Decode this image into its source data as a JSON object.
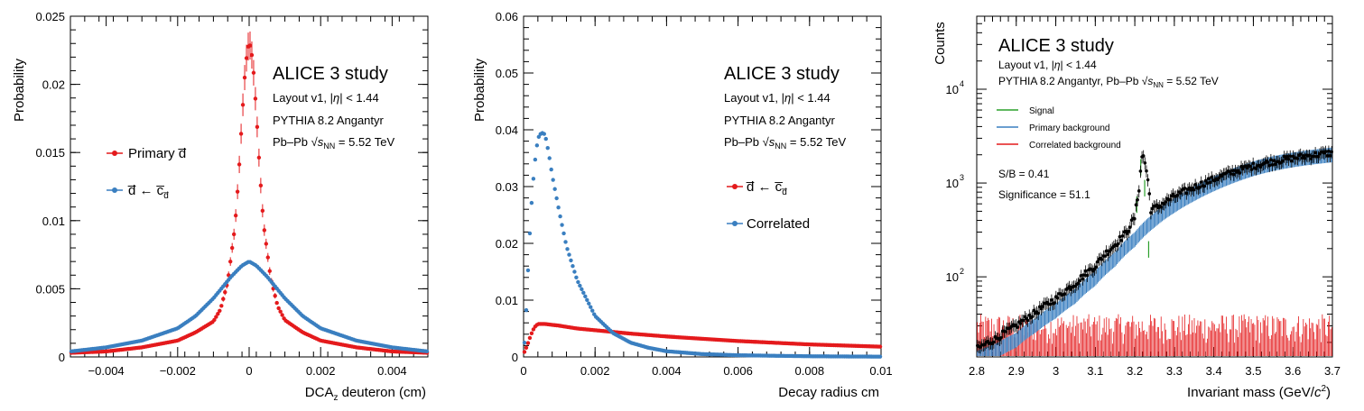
{
  "colors": {
    "red": "#e41a1c",
    "blue": "#3a7fc0",
    "green": "#2ca02c",
    "black": "#000000"
  },
  "chart_data": [
    {
      "type": "scatter",
      "ylabel": "Probability",
      "xlabel_main": "DCA",
      "xlabel_sub": "z",
      "xlabel_rest": " deuteron (cm)",
      "xlim": [
        -0.005,
        0.005
      ],
      "ylim": [
        0,
        0.025
      ],
      "x_ticks": [
        -0.004,
        -0.002,
        0,
        0.002,
        0.004
      ],
      "x_tick_labels": [
        "−0.004",
        "−0.002",
        "0",
        "0.002",
        "0.004"
      ],
      "y_ticks": [
        0,
        0.005,
        0.01,
        0.015,
        0.02,
        0.025
      ],
      "y_tick_labels": [
        "0",
        "0.005",
        "0.01",
        "0.015",
        "0.02",
        "0.025"
      ],
      "annotation": {
        "title": "ALICE 3 study",
        "line1_pre": "Layout v1, |",
        "line1_eta": "η",
        "line1_post": "| < 1.44",
        "line2": "PYTHIA 8.2 Angantyr",
        "line3_pre": "Pb–Pb ",
        "line3_s": "s",
        "line3_sub": "NN",
        "line3_post": " = 5.52 TeV"
      },
      "legend_placement": "left",
      "series": [
        {
          "name": "Primary d̅",
          "color": "red",
          "shape": "gaussian",
          "points": [
            [
              -0.005,
              0.0003
            ],
            [
              -0.004,
              0.0004
            ],
            [
              -0.003,
              0.0007
            ],
            [
              -0.002,
              0.0012
            ],
            [
              -0.0015,
              0.0018
            ],
            [
              -0.001,
              0.0026
            ],
            [
              -0.0008,
              0.0035
            ],
            [
              -0.0006,
              0.0055
            ],
            [
              -0.0004,
              0.0095
            ],
            [
              -0.0003,
              0.013
            ],
            [
              -0.0002,
              0.0175
            ],
            [
              -0.0001,
              0.0215
            ],
            [
              0,
              0.0232
            ],
            [
              0.0001,
              0.0218
            ],
            [
              0.0002,
              0.018
            ],
            [
              0.0003,
              0.0135
            ],
            [
              0.0004,
              0.0098
            ],
            [
              0.0006,
              0.0058
            ],
            [
              0.0008,
              0.0037
            ],
            [
              0.001,
              0.0027
            ],
            [
              0.0015,
              0.0018
            ],
            [
              0.002,
              0.0012
            ],
            [
              0.003,
              0.0007
            ],
            [
              0.004,
              0.0004
            ],
            [
              0.005,
              0.0003
            ]
          ]
        },
        {
          "name": "d̅ ← c̅",
          "name_sub": "d̅",
          "color": "blue",
          "shape": "broad",
          "points": [
            [
              -0.005,
              0.0004
            ],
            [
              -0.004,
              0.0007
            ],
            [
              -0.003,
              0.0012
            ],
            [
              -0.002,
              0.0021
            ],
            [
              -0.0015,
              0.003
            ],
            [
              -0.001,
              0.0043
            ],
            [
              -0.0005,
              0.0059
            ],
            [
              -0.0002,
              0.0067
            ],
            [
              0,
              0.007
            ],
            [
              0.0002,
              0.0067
            ],
            [
              0.0005,
              0.0059
            ],
            [
              0.001,
              0.0043
            ],
            [
              0.0015,
              0.003
            ],
            [
              0.002,
              0.0021
            ],
            [
              0.003,
              0.0012
            ],
            [
              0.004,
              0.0007
            ],
            [
              0.005,
              0.0004
            ]
          ]
        }
      ]
    },
    {
      "type": "scatter",
      "ylabel": "Probability",
      "xlabel": "Decay radius cm",
      "xlim": [
        0,
        0.01
      ],
      "ylim": [
        0,
        0.06
      ],
      "x_ticks": [
        0,
        0.002,
        0.004,
        0.006,
        0.008,
        0.01
      ],
      "x_tick_labels": [
        "0",
        "0.002",
        "0.004",
        "0.006",
        "0.008",
        "0.01"
      ],
      "y_ticks": [
        0,
        0.01,
        0.02,
        0.03,
        0.04,
        0.05,
        0.06
      ],
      "y_tick_labels": [
        "0",
        "0.01",
        "0.02",
        "0.03",
        "0.04",
        "0.05",
        "0.06"
      ],
      "annotation": {
        "title": "ALICE 3 study",
        "line1_pre": "Layout v1, |",
        "line1_eta": "η",
        "line1_post": "| < 1.44",
        "line2": "PYTHIA 8.2 Angantyr",
        "line3_pre": "Pb–Pb ",
        "line3_s": "s",
        "line3_sub": "NN",
        "line3_post": " = 5.52 TeV"
      },
      "legend_placement": "right",
      "series": [
        {
          "name": "d̅ ← c̅",
          "name_sub": "d̅",
          "color": "red",
          "points": [
            [
              0,
              0.0005
            ],
            [
              0.0001,
              0.002
            ],
            [
              0.0002,
              0.0038
            ],
            [
              0.0003,
              0.0052
            ],
            [
              0.0004,
              0.0058
            ],
            [
              0.0006,
              0.0058
            ],
            [
              0.001,
              0.0055
            ],
            [
              0.0015,
              0.005
            ],
            [
              0.002,
              0.0047
            ],
            [
              0.003,
              0.0041
            ],
            [
              0.004,
              0.0036
            ],
            [
              0.005,
              0.0032
            ],
            [
              0.006,
              0.0028
            ],
            [
              0.007,
              0.0025
            ],
            [
              0.008,
              0.0022
            ],
            [
              0.009,
              0.002
            ],
            [
              0.01,
              0.0018
            ]
          ]
        },
        {
          "name": "Correlated",
          "color": "blue",
          "points": [
            [
              0,
              0.0005
            ],
            [
              5e-05,
              0.0045
            ],
            [
              0.0001,
              0.012
            ],
            [
              0.00015,
              0.0185
            ],
            [
              0.0002,
              0.025
            ],
            [
              0.0003,
              0.0335
            ],
            [
              0.0004,
              0.0385
            ],
            [
              0.0005,
              0.0395
            ],
            [
              0.0006,
              0.0392
            ],
            [
              0.0007,
              0.036
            ],
            [
              0.0008,
              0.032
            ],
            [
              0.001,
              0.0255
            ],
            [
              0.0012,
              0.0195
            ],
            [
              0.0015,
              0.0135
            ],
            [
              0.002,
              0.0072
            ],
            [
              0.0025,
              0.0042
            ],
            [
              0.003,
              0.0025
            ],
            [
              0.0035,
              0.0016
            ],
            [
              0.004,
              0.001
            ],
            [
              0.005,
              0.0005
            ],
            [
              0.006,
              0.0003
            ],
            [
              0.007,
              0.0002
            ],
            [
              0.008,
              0.00012
            ],
            [
              0.009,
              8e-05
            ],
            [
              0.01,
              5e-05
            ]
          ]
        }
      ]
    },
    {
      "type": "scatter",
      "ylabel": "Counts",
      "xlabel_pre": "Invariant mass (GeV/",
      "xlabel_c": "c",
      "xlabel_sup": "2",
      "xlabel_post": ")",
      "xlim": [
        2.8,
        3.7
      ],
      "ylim": [
        14,
        60000
      ],
      "log_y": true,
      "x_ticks": [
        2.8,
        2.9,
        3.0,
        3.1,
        3.2,
        3.3,
        3.4,
        3.5,
        3.6,
        3.7
      ],
      "x_tick_labels": [
        "2.8",
        "2.9",
        "3",
        "3.1",
        "3.2",
        "3.3",
        "3.4",
        "3.5",
        "3.6",
        "3.7"
      ],
      "y_decades": [
        {
          "value": 100,
          "exp": "2"
        },
        {
          "value": 1000,
          "exp": "3"
        },
        {
          "value": 10000,
          "exp": "4"
        }
      ],
      "annotation": {
        "title": "ALICE 3 study",
        "line1_pre": "Layout v1, |",
        "line1_eta": "η",
        "line1_post": "| < 1.44",
        "line2_pre": "PYTHIA 8.2 Angantyr, Pb–Pb ",
        "line2_s": "s",
        "line2_sub": "NN",
        "line2_post": " = 5.52 TeV"
      },
      "legend": [
        "Signal",
        "Primary background",
        "Correlated background"
      ],
      "legend_colors": [
        "green",
        "blue",
        "red"
      ],
      "stats": {
        "sb": "S/B = 0.41",
        "significance": "Significance = 51.1"
      },
      "data_points": [
        [
          2.8,
          17
        ],
        [
          2.85,
          22
        ],
        [
          2.9,
          30
        ],
        [
          2.95,
          42
        ],
        [
          3.0,
          58
        ],
        [
          3.05,
          85
        ],
        [
          3.1,
          130
        ],
        [
          3.15,
          220
        ],
        [
          3.18,
          300
        ],
        [
          3.2,
          430
        ],
        [
          3.21,
          800
        ],
        [
          3.22,
          2100
        ],
        [
          3.23,
          1300
        ],
        [
          3.24,
          520
        ],
        [
          3.26,
          560
        ],
        [
          3.3,
          720
        ],
        [
          3.35,
          900
        ],
        [
          3.4,
          1100
        ],
        [
          3.45,
          1320
        ],
        [
          3.5,
          1520
        ],
        [
          3.55,
          1700
        ],
        [
          3.6,
          1850
        ],
        [
          3.65,
          1980
        ],
        [
          3.7,
          2100
        ]
      ],
      "primary_background": [
        [
          2.8,
          14
        ],
        [
          2.85,
          17
        ],
        [
          2.9,
          22
        ],
        [
          2.95,
          32
        ],
        [
          3.0,
          45
        ],
        [
          3.05,
          65
        ],
        [
          3.1,
          100
        ],
        [
          3.15,
          160
        ],
        [
          3.2,
          260
        ],
        [
          3.25,
          420
        ],
        [
          3.3,
          600
        ],
        [
          3.35,
          800
        ],
        [
          3.4,
          1020
        ],
        [
          3.45,
          1250
        ],
        [
          3.5,
          1480
        ],
        [
          3.55,
          1680
        ],
        [
          3.6,
          1840
        ],
        [
          3.65,
          1970
        ],
        [
          3.7,
          2080
        ]
      ],
      "signal": [
        [
          3.205,
          600
        ],
        [
          3.215,
          1500
        ],
        [
          3.225,
          900
        ],
        [
          3.235,
          200
        ]
      ],
      "correlated_background_level": [
        14,
        40
      ]
    }
  ]
}
